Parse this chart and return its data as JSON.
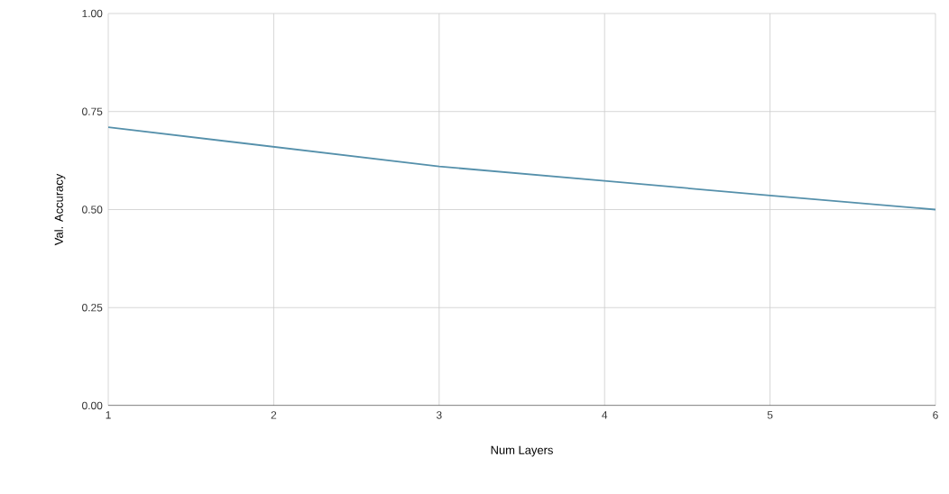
{
  "chart_data": {
    "type": "line",
    "xlabel": "Num Layers",
    "ylabel": "Val. Accuracy",
    "x": [
      1,
      2,
      3,
      4,
      5,
      6
    ],
    "series": [
      {
        "color": "#5590ab",
        "values": [
          0.71,
          0.66,
          0.61,
          0.573,
          0.536,
          0.5
        ]
      }
    ],
    "xlim": [
      1,
      6
    ],
    "xticks": [
      1,
      2,
      3,
      4,
      5,
      6
    ],
    "ylim": [
      0,
      1
    ],
    "yticks": [
      {
        "value": 0,
        "label": "0.00"
      },
      {
        "value": 0.25,
        "label": "0.25"
      },
      {
        "value": 0.5,
        "label": "0.50"
      },
      {
        "value": 0.75,
        "label": "0.75"
      },
      {
        "value": 1,
        "label": "1.00"
      }
    ],
    "grid": true,
    "marker": "none",
    "line_style": "solid"
  }
}
